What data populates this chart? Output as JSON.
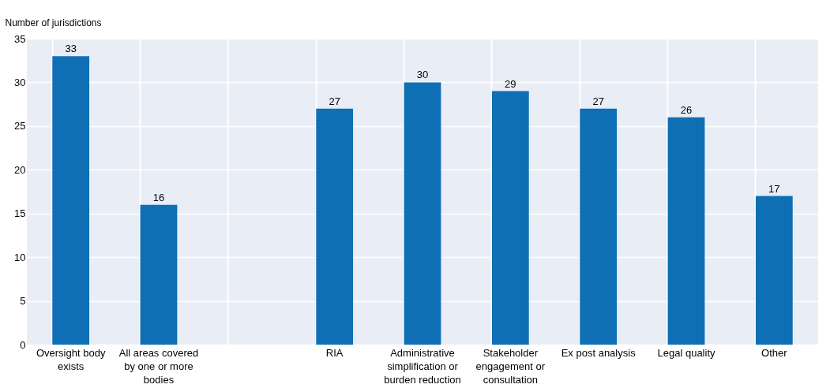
{
  "chart_data": {
    "type": "bar",
    "ylabel": "Number of jurisdictions",
    "categories": [
      "Oversight body exists",
      "All areas covered by one or more bodies",
      null,
      "RIA",
      "Administrative simplification or burden reduction",
      "Stakeholder engagement or consultation",
      "Ex post analysis",
      "Legal quality",
      "Other"
    ],
    "values": [
      33,
      16,
      null,
      27,
      30,
      29,
      27,
      26,
      17
    ],
    "color": "#0f6fb4",
    "ylim": [
      0,
      35
    ],
    "yticks": [
      0,
      5,
      10,
      15,
      20,
      25,
      30,
      35
    ],
    "grid": true,
    "data_labels": true
  }
}
